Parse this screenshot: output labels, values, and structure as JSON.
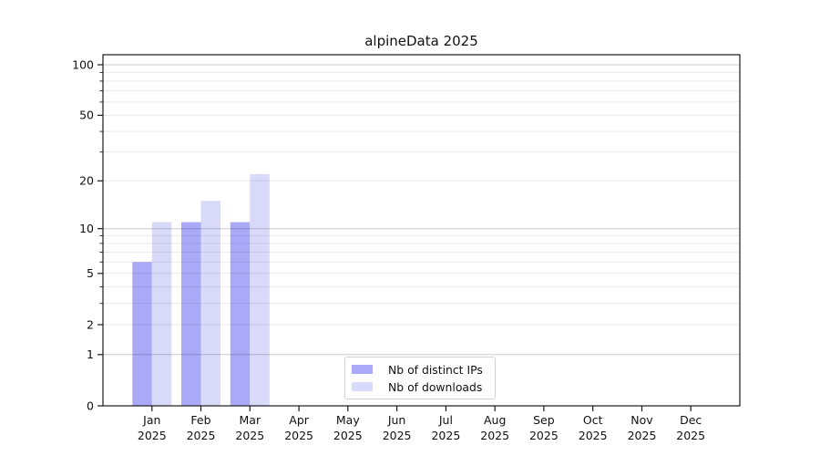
{
  "chart_data": {
    "type": "bar",
    "title": "alpineData 2025",
    "categories": [
      "Jan 2025",
      "Feb 2025",
      "Mar 2025",
      "Apr 2025",
      "May 2025",
      "Jun 2025",
      "Jul 2025",
      "Aug 2025",
      "Sep 2025",
      "Oct 2025",
      "Nov 2025",
      "Dec 2025"
    ],
    "series": [
      {
        "name": "Nb of distinct IPs",
        "color": "#a9a9f8",
        "values": [
          6,
          11,
          11,
          0,
          0,
          0,
          0,
          0,
          0,
          0,
          0,
          0
        ]
      },
      {
        "name": "Nb of downloads",
        "color": "#d9d9fa",
        "values": [
          11,
          15,
          22,
          0,
          0,
          0,
          0,
          0,
          0,
          0,
          0,
          0
        ]
      }
    ],
    "yscale": "symlog",
    "ytick_labels": [
      "0",
      "1",
      "2",
      "5",
      "10",
      "20",
      "50",
      "100"
    ],
    "ytick_values": [
      0,
      1,
      2,
      5,
      10,
      20,
      50,
      100
    ],
    "ylim": [
      0,
      115
    ],
    "grid": "horizontal",
    "legend_position": "bottom-center"
  },
  "colors": {
    "grid_major": "rgba(0,0,0,0.20)",
    "grid_minor": "rgba(0,0,0,0.08)",
    "spine": "#1a1a1a",
    "text": "#111111",
    "background": "#ffffff"
  }
}
